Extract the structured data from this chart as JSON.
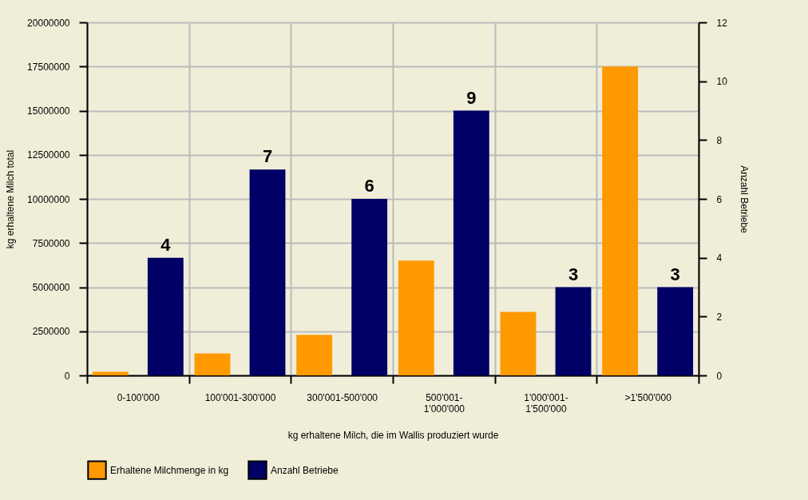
{
  "chart_data": {
    "type": "bar",
    "categories": [
      "0-100'000",
      "100'001-300'000",
      "300'001-500'000",
      "500'001-1'000'000",
      "1'000'001-1'500'000",
      ">1'500'000"
    ],
    "xlabel": "kg erhaltene Milch, die im Wallis produziert wurde",
    "ylabel": "kg erhaltene Milch total",
    "y2label": "Anzahl Betriebe",
    "series": [
      {
        "name": "Erhaltene Milchmenge in kg",
        "color": "#ff9900",
        "values": [
          200000,
          1250000,
          2300000,
          6500000,
          3600000,
          17500000
        ]
      },
      {
        "name": "Anzahl Betriebe",
        "color": "#000066",
        "axis": "y2",
        "values": [
          4,
          7,
          6,
          9,
          3,
          3
        ],
        "value_labels": [
          "4",
          "7",
          "6",
          "9",
          "3",
          "3"
        ]
      }
    ],
    "ylim": [
      0,
      20000000
    ],
    "yticks": [
      0,
      2500000,
      5000000,
      7500000,
      10000000,
      12500000,
      15000000,
      17500000,
      20000000
    ],
    "y2lim": [
      0,
      12
    ],
    "y2ticks": [
      0,
      2,
      4,
      6,
      8,
      10,
      12
    ],
    "grid": true,
    "legend": "bottom"
  }
}
